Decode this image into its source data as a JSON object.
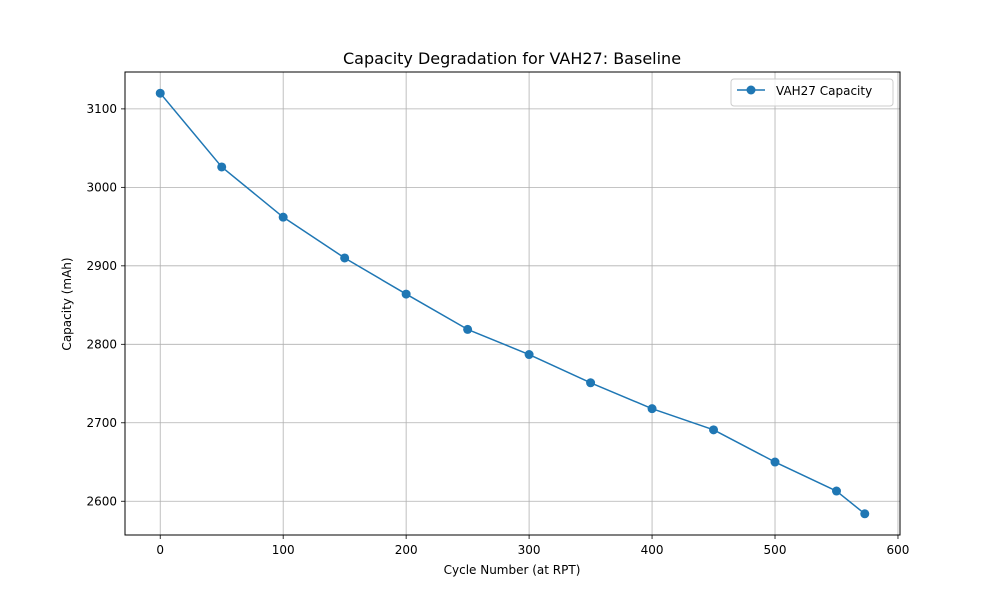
{
  "chart_data": {
    "type": "line",
    "title": "Capacity Degradation for VAH27: Baseline",
    "xlabel": "Cycle Number (at RPT)",
    "ylabel": "Capacity (mAh)",
    "xlim": [
      -28.65,
      601.65
    ],
    "ylim": [
      2557,
      3147
    ],
    "xticks": [
      0,
      100,
      200,
      300,
      400,
      500,
      600
    ],
    "yticks": [
      2600,
      2700,
      2800,
      2900,
      3000,
      3100
    ],
    "xtick_labels": [
      "0",
      "100",
      "200",
      "300",
      "400",
      "500",
      "600"
    ],
    "ytick_labels": [
      "2600",
      "2700",
      "2800",
      "2900",
      "3000",
      "3100"
    ],
    "grid": true,
    "legend_position": "upper right",
    "series": [
      {
        "name": "VAH27 Capacity",
        "color": "#1f77b4",
        "marker": "circle",
        "x": [
          0,
          50,
          100,
          150,
          200,
          250,
          300,
          350,
          400,
          450,
          500,
          550,
          573
        ],
        "y": [
          3120,
          3026,
          2962,
          2910,
          2864,
          2819,
          2787,
          2751,
          2718,
          2691,
          2650,
          2613,
          2584
        ]
      }
    ]
  }
}
